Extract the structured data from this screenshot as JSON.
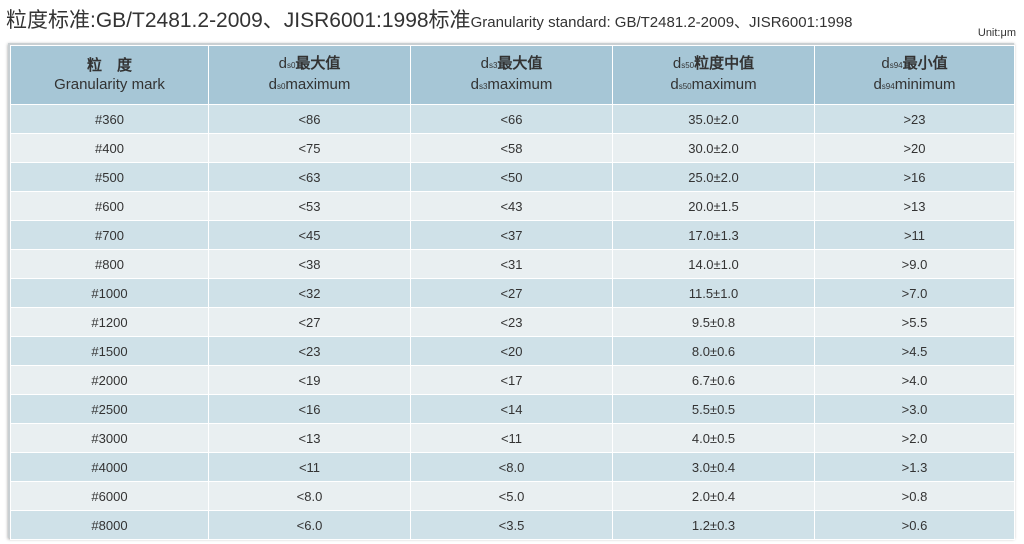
{
  "header": {
    "title_cn": "粒度标准:GB/T2481.2-2009、JISR6001:1998标准",
    "title_en": "Granularity standard: GB/T2481.2-2009、JISR6001:1998",
    "unit": "Unit:μm"
  },
  "table": {
    "columns": [
      {
        "label_cn": "粒　度",
        "label_en": "Granularity mark"
      },
      {
        "symbol": "d",
        "sub": "s0",
        "label_cn": "最大值",
        "label_en": "maximum"
      },
      {
        "symbol": "d",
        "sub": "s3",
        "label_cn": "最大值",
        "label_en": "maximum"
      },
      {
        "symbol": "d",
        "sub": "s50",
        "label_cn": "粒度中值",
        "label_en": "maximum"
      },
      {
        "symbol": "d",
        "sub": "s94",
        "label_cn": "最小值",
        "label_en": "minimum"
      }
    ],
    "rows": [
      [
        "#360",
        "<86",
        "<66",
        "35.0±2.0",
        ">23"
      ],
      [
        "#400",
        "<75",
        "<58",
        "30.0±2.0",
        ">20"
      ],
      [
        "#500",
        "<63",
        "<50",
        "25.0±2.0",
        ">16"
      ],
      [
        "#600",
        "<53",
        "<43",
        "20.0±1.5",
        ">13"
      ],
      [
        "#700",
        "<45",
        "<37",
        "17.0±1.3",
        ">11"
      ],
      [
        "#800",
        "<38",
        "<31",
        "14.0±1.0",
        ">9.0"
      ],
      [
        "#1000",
        "<32",
        "<27",
        "11.5±1.0",
        ">7.0"
      ],
      [
        "#1200",
        "<27",
        "<23",
        "9.5±0.8",
        ">5.5"
      ],
      [
        "#1500",
        "<23",
        "<20",
        "8.0±0.6",
        ">4.5"
      ],
      [
        "#2000",
        "<19",
        "<17",
        "6.7±0.6",
        ">4.0"
      ],
      [
        "#2500",
        "<16",
        "<14",
        "5.5±0.5",
        ">3.0"
      ],
      [
        "#3000",
        "<13",
        "<11",
        "4.0±0.5",
        ">2.0"
      ],
      [
        "#4000",
        "<11",
        "<8.0",
        "3.0±0.4",
        ">1.3"
      ],
      [
        "#6000",
        "<8.0",
        "<5.0",
        "2.0±0.4",
        ">0.8"
      ],
      [
        "#8000",
        "<6.0",
        "<3.5",
        "1.2±0.3",
        ">0.6"
      ]
    ]
  }
}
